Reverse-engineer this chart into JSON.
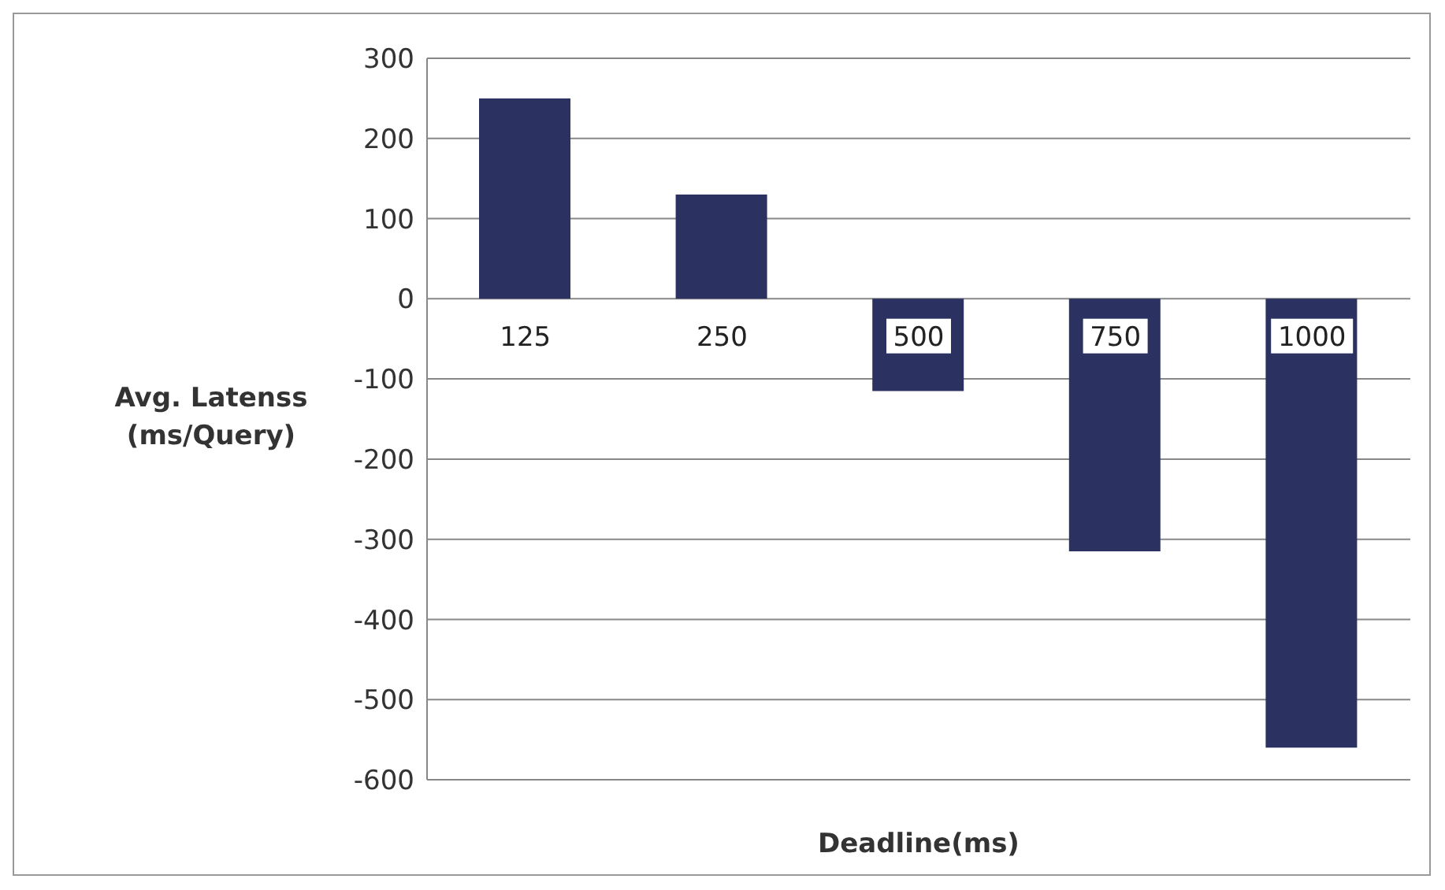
{
  "chart_data": {
    "type": "bar",
    "xlabel": "Deadline(ms)",
    "ylabel": "Avg. Latenss (ms/Query)",
    "categories": [
      "125",
      "250",
      "500",
      "750",
      "1000"
    ],
    "values": [
      250,
      130,
      -115,
      -315,
      -560
    ],
    "color": "#2b3160",
    "ylim": [
      -600,
      300
    ],
    "yticks": [
      -600,
      -500,
      -400,
      -300,
      -200,
      -100,
      0,
      100,
      200,
      300
    ],
    "grid": "y"
  }
}
